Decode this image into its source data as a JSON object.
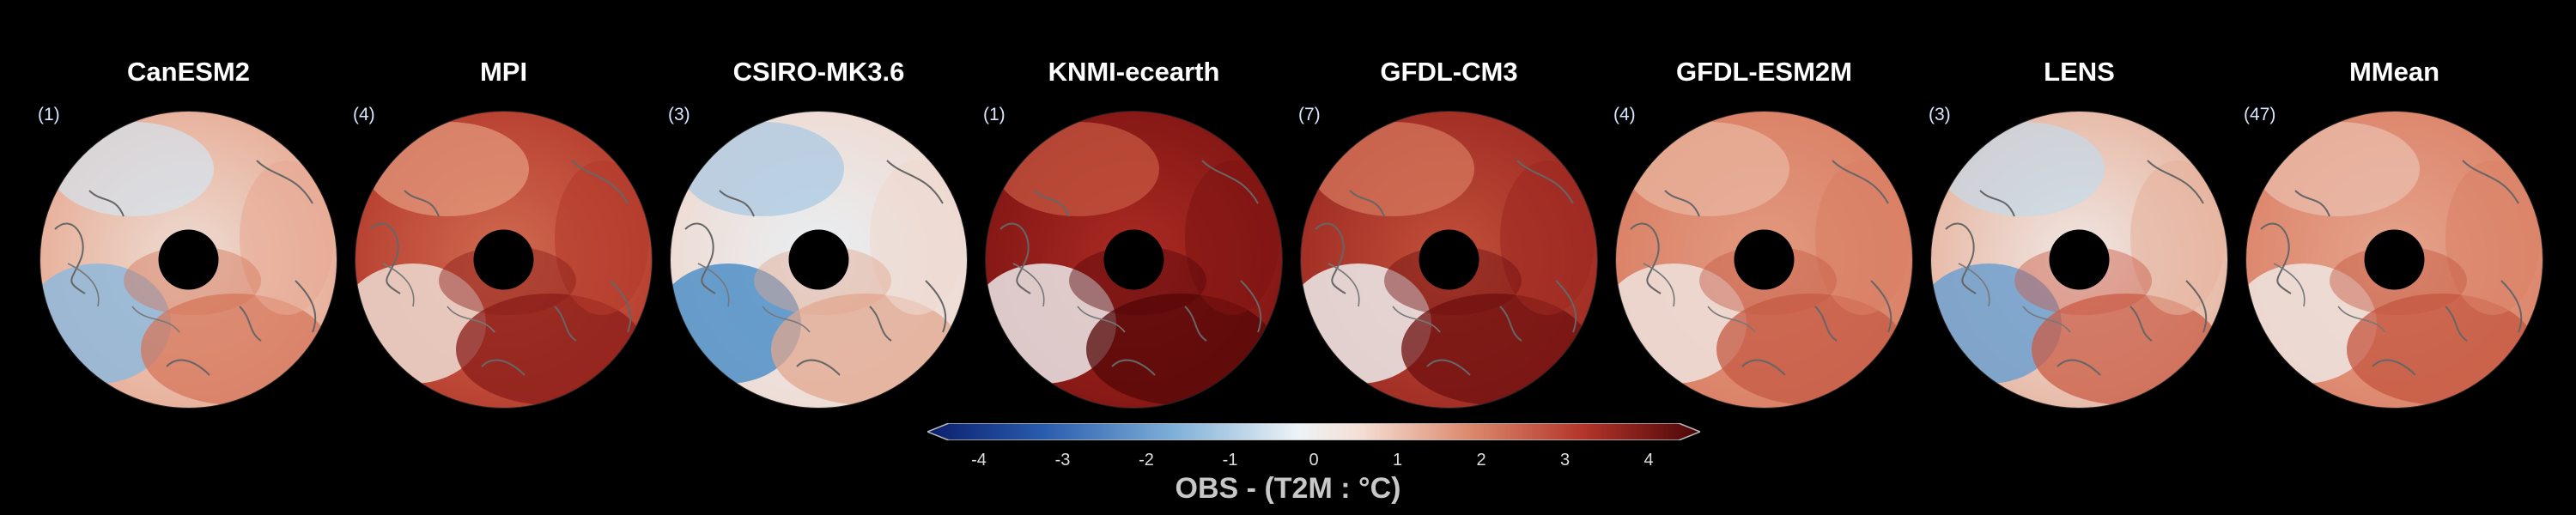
{
  "panels": [
    {
      "title": "CanESM2",
      "count": "(1)"
    },
    {
      "title": "MPI",
      "count": "(4)"
    },
    {
      "title": "CSIRO-MK3.6",
      "count": "(3)"
    },
    {
      "title": "KNMI-ecearth",
      "count": "(1)"
    },
    {
      "title": "GFDL-CM3",
      "count": "(7)"
    },
    {
      "title": "GFDL-ESM2M",
      "count": "(4)"
    },
    {
      "title": "LENS",
      "count": "(3)"
    },
    {
      "title": "MMean",
      "count": "(47)"
    }
  ],
  "colorbar": {
    "ticks": [
      "-4",
      "-3",
      "-2",
      "-1",
      "0",
      "1",
      "2",
      "3",
      "4"
    ],
    "title": "OBS - (T2M : °C)",
    "colors": [
      "#0b1e6b",
      "#2a5cae",
      "#7fb0d8",
      "#e6eef5",
      "#f1dcd2",
      "#dc8a6e",
      "#b3342a",
      "#4a0608"
    ]
  }
}
